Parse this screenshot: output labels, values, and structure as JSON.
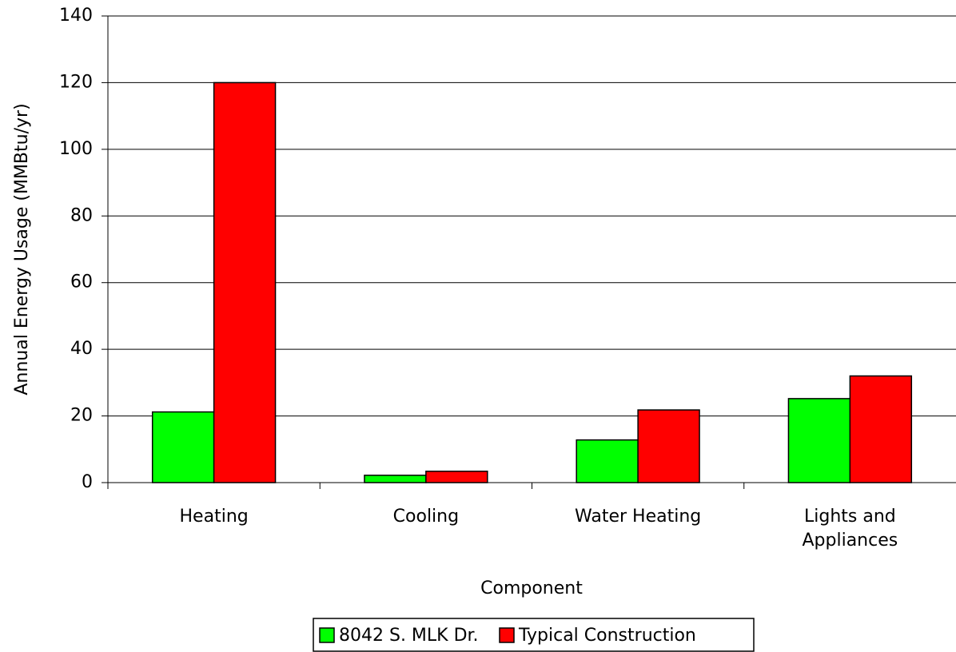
{
  "chart_data": {
    "type": "bar",
    "y_label": "Annual Energy Usage (MMBtu/yr)",
    "x_label": "Component",
    "categories": [
      "Heating",
      "Cooling",
      "Water Heating",
      "Lights and Appliances"
    ],
    "series": [
      {
        "name": "8042 S. MLK Dr.",
        "color": "#00ff00",
        "values": [
          21.2,
          2.2,
          12.8,
          25.2
        ]
      },
      {
        "name": "Typical Construction",
        "color": "#ff0000",
        "values": [
          120,
          3.4,
          21.8,
          32
        ]
      }
    ],
    "ylim": [
      0,
      140
    ],
    "yticks": [
      0,
      20,
      40,
      60,
      80,
      100,
      120,
      140
    ],
    "grid": true
  }
}
